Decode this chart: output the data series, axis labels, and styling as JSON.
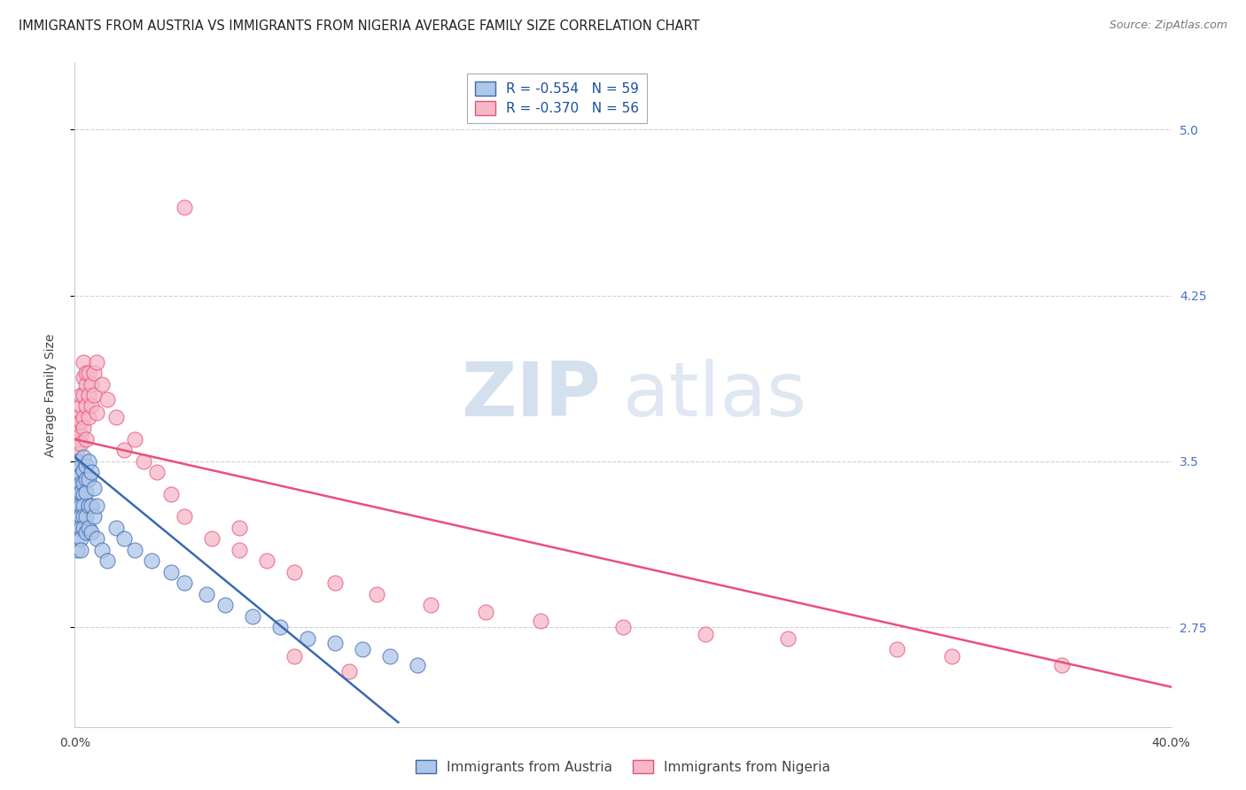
{
  "title": "IMMIGRANTS FROM AUSTRIA VS IMMIGRANTS FROM NIGERIA AVERAGE FAMILY SIZE CORRELATION CHART",
  "source": "Source: ZipAtlas.com",
  "ylabel": "Average Family Size",
  "legend_austria_r": "R = -0.554",
  "legend_austria_n": "N = 59",
  "legend_nigeria_r": "R = -0.370",
  "legend_nigeria_n": "N = 56",
  "legend_label_austria": "Immigrants from Austria",
  "legend_label_nigeria": "Immigrants from Nigeria",
  "austria_color": "#aec6e8",
  "austria_line_color": "#3a6ab0",
  "nigeria_color": "#f5b8c8",
  "nigeria_line_color": "#e8507a",
  "watermark_zip": "ZIP",
  "watermark_atlas": "atlas",
  "background_color": "#ffffff",
  "grid_color": "#d0d0d0",
  "title_fontsize": 10.5,
  "axis_label_fontsize": 10,
  "tick_fontsize": 10,
  "legend_fontsize": 11,
  "xlim": [
    0.0,
    0.4
  ],
  "ylim": [
    2.3,
    5.3
  ],
  "yticks": [
    2.75,
    3.5,
    4.25,
    5.0
  ],
  "xticks": [
    0.0,
    0.08,
    0.16,
    0.24,
    0.32,
    0.4
  ],
  "austria_scatter_x": [
    0.001,
    0.001,
    0.001,
    0.001,
    0.001,
    0.001,
    0.001,
    0.001,
    0.001,
    0.001,
    0.002,
    0.002,
    0.002,
    0.002,
    0.002,
    0.002,
    0.002,
    0.002,
    0.002,
    0.003,
    0.003,
    0.003,
    0.003,
    0.003,
    0.003,
    0.003,
    0.004,
    0.004,
    0.004,
    0.004,
    0.004,
    0.005,
    0.005,
    0.005,
    0.005,
    0.006,
    0.006,
    0.006,
    0.007,
    0.007,
    0.008,
    0.008,
    0.01,
    0.012,
    0.015,
    0.018,
    0.022,
    0.028,
    0.035,
    0.04,
    0.048,
    0.055,
    0.065,
    0.075,
    0.085,
    0.095,
    0.105,
    0.115,
    0.125
  ],
  "austria_scatter_y": [
    3.5,
    3.45,
    3.42,
    3.38,
    3.35,
    3.3,
    3.25,
    3.2,
    3.15,
    3.1,
    3.48,
    3.44,
    3.4,
    3.36,
    3.3,
    3.25,
    3.2,
    3.15,
    3.1,
    3.52,
    3.46,
    3.4,
    3.35,
    3.3,
    3.25,
    3.2,
    3.48,
    3.42,
    3.36,
    3.25,
    3.18,
    3.5,
    3.42,
    3.3,
    3.2,
    3.45,
    3.3,
    3.18,
    3.38,
    3.25,
    3.3,
    3.15,
    3.1,
    3.05,
    3.2,
    3.15,
    3.1,
    3.05,
    3.0,
    2.95,
    2.9,
    2.85,
    2.8,
    2.75,
    2.7,
    2.68,
    2.65,
    2.62,
    2.58
  ],
  "nigeria_scatter_x": [
    0.001,
    0.001,
    0.001,
    0.001,
    0.001,
    0.002,
    0.002,
    0.002,
    0.002,
    0.002,
    0.003,
    0.003,
    0.003,
    0.003,
    0.003,
    0.004,
    0.004,
    0.004,
    0.004,
    0.005,
    0.005,
    0.005,
    0.006,
    0.006,
    0.007,
    0.007,
    0.008,
    0.008,
    0.01,
    0.012,
    0.015,
    0.018,
    0.022,
    0.025,
    0.03,
    0.035,
    0.04,
    0.05,
    0.06,
    0.07,
    0.08,
    0.095,
    0.11,
    0.13,
    0.15,
    0.17,
    0.2,
    0.23,
    0.26,
    0.3,
    0.32,
    0.36,
    0.04,
    0.06,
    0.08,
    0.1
  ],
  "nigeria_scatter_y": [
    3.55,
    3.6,
    3.65,
    3.7,
    3.5,
    3.62,
    3.68,
    3.75,
    3.8,
    3.58,
    3.7,
    3.8,
    3.88,
    3.95,
    3.65,
    3.75,
    3.85,
    3.9,
    3.6,
    3.8,
    3.9,
    3.7,
    3.85,
    3.75,
    3.9,
    3.8,
    3.95,
    3.72,
    3.85,
    3.78,
    3.7,
    3.55,
    3.6,
    3.5,
    3.45,
    3.35,
    3.25,
    3.15,
    3.1,
    3.05,
    3.0,
    2.95,
    2.9,
    2.85,
    2.82,
    2.78,
    2.75,
    2.72,
    2.7,
    2.65,
    2.62,
    2.58,
    4.65,
    3.2,
    2.62,
    2.55
  ],
  "austria_trendline_x": [
    0.0,
    0.118
  ],
  "austria_trendline_y": [
    3.52,
    2.32
  ],
  "nigeria_trendline_x": [
    0.0,
    0.4
  ],
  "nigeria_trendline_y": [
    3.6,
    2.48
  ]
}
